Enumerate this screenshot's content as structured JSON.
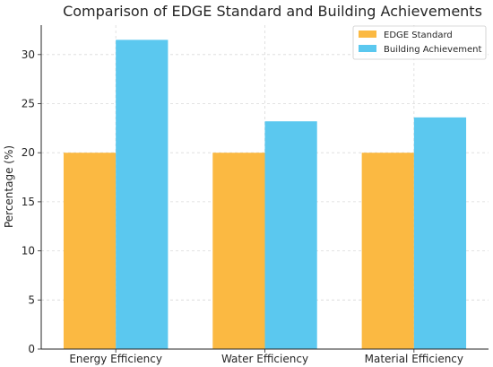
{
  "chart_data": {
    "type": "bar",
    "title": "Comparison of EDGE Standard and Building Achievements",
    "xlabel": "",
    "ylabel": "Percentage (%)",
    "categories": [
      "Energy Efficiency",
      "Water Efficiency",
      "Material Efficiency"
    ],
    "series": [
      {
        "name": "EDGE Standard",
        "values": [
          20,
          20,
          20
        ],
        "color": "#FBB942"
      },
      {
        "name": "Building Achievement",
        "values": [
          31.5,
          23.2,
          23.6
        ],
        "color": "#5BC8EF"
      }
    ],
    "ylim": [
      0,
      33
    ],
    "yticks": [
      0,
      5,
      10,
      15,
      20,
      25,
      30
    ],
    "grid": true,
    "legend_position": "top-right"
  }
}
